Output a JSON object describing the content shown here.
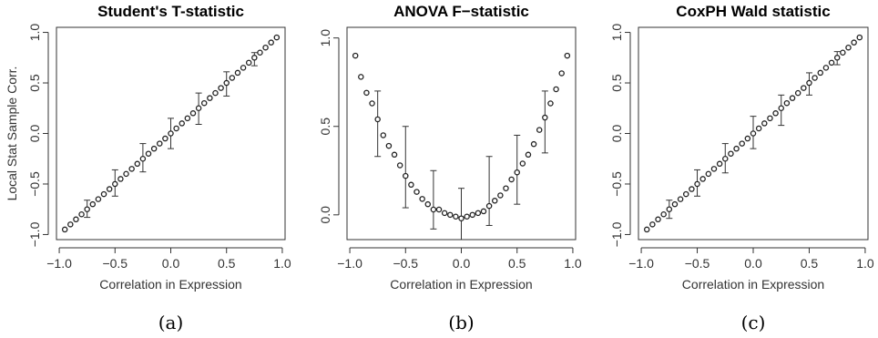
{
  "chart_data": [
    {
      "type": "scatter",
      "title": "Student's T-statistic",
      "xlabel": "Correlation in Expression",
      "ylabel": "Local Stat Sample Corr.",
      "caption": "(a)",
      "xlim": [
        -1.0,
        1.0
      ],
      "ylim": [
        -1.0,
        1.0
      ],
      "xticks": [
        -1.0,
        -0.5,
        0.0,
        0.5,
        1.0
      ],
      "xtick_labels": [
        "−1.0",
        "−0.5",
        "0.0",
        "0.5",
        "1.0"
      ],
      "yticks": [
        -1.0,
        -0.5,
        0.0,
        0.5,
        1.0
      ],
      "ytick_labels": [
        "−1.0",
        "−0.5",
        "0.0",
        "0.5",
        "1.0"
      ],
      "x": [
        -0.95,
        -0.9,
        -0.85,
        -0.8,
        -0.75,
        -0.7,
        -0.65,
        -0.6,
        -0.55,
        -0.5,
        -0.45,
        -0.4,
        -0.35,
        -0.3,
        -0.25,
        -0.2,
        -0.15,
        -0.1,
        -0.05,
        0.0,
        0.05,
        0.1,
        0.15,
        0.2,
        0.25,
        0.3,
        0.35,
        0.4,
        0.45,
        0.5,
        0.55,
        0.6,
        0.65,
        0.7,
        0.75,
        0.8,
        0.85,
        0.9,
        0.95
      ],
      "y": [
        -0.95,
        -0.9,
        -0.85,
        -0.8,
        -0.75,
        -0.7,
        -0.65,
        -0.6,
        -0.55,
        -0.5,
        -0.45,
        -0.4,
        -0.35,
        -0.3,
        -0.25,
        -0.2,
        -0.15,
        -0.1,
        -0.05,
        0.0,
        0.05,
        0.1,
        0.15,
        0.2,
        0.25,
        0.3,
        0.35,
        0.4,
        0.45,
        0.5,
        0.55,
        0.6,
        0.65,
        0.7,
        0.75,
        0.8,
        0.85,
        0.9,
        0.95
      ],
      "error_bars": [
        {
          "x": -0.75,
          "low": -0.83,
          "high": -0.66
        },
        {
          "x": -0.5,
          "low": -0.62,
          "high": -0.36
        },
        {
          "x": -0.25,
          "low": -0.38,
          "high": -0.1
        },
        {
          "x": 0.0,
          "low": -0.15,
          "high": 0.15
        },
        {
          "x": 0.25,
          "low": 0.09,
          "high": 0.4
        },
        {
          "x": 0.5,
          "low": 0.37,
          "high": 0.61
        },
        {
          "x": 0.75,
          "low": 0.67,
          "high": 0.8
        }
      ]
    },
    {
      "type": "scatter",
      "title": "ANOVA F−statistic",
      "xlabel": "Correlation in Expression",
      "ylabel": "",
      "caption": "(b)",
      "xlim": [
        -1.0,
        1.0
      ],
      "ylim": [
        -0.1,
        1.0
      ],
      "xticks": [
        -1.0,
        -0.5,
        0.0,
        0.5,
        1.0
      ],
      "xtick_labels": [
        "−1.0",
        "−0.5",
        "0.0",
        "0.5",
        "1.0"
      ],
      "yticks": [
        0.0,
        0.5,
        1.0
      ],
      "ytick_labels": [
        "0.0",
        "0.5",
        "1.0"
      ],
      "x": [
        -0.95,
        -0.9,
        -0.85,
        -0.8,
        -0.75,
        -0.7,
        -0.65,
        -0.6,
        -0.55,
        -0.5,
        -0.45,
        -0.4,
        -0.35,
        -0.3,
        -0.25,
        -0.2,
        -0.15,
        -0.1,
        -0.05,
        0.0,
        0.05,
        0.1,
        0.15,
        0.2,
        0.25,
        0.3,
        0.35,
        0.4,
        0.45,
        0.5,
        0.55,
        0.6,
        0.65,
        0.7,
        0.75,
        0.8,
        0.85,
        0.9,
        0.95
      ],
      "y": [
        0.9,
        0.78,
        0.69,
        0.63,
        0.54,
        0.45,
        0.39,
        0.34,
        0.28,
        0.22,
        0.17,
        0.13,
        0.09,
        0.06,
        0.03,
        0.03,
        0.01,
        0.0,
        -0.01,
        -0.02,
        -0.01,
        0.0,
        0.01,
        0.02,
        0.05,
        0.08,
        0.11,
        0.15,
        0.2,
        0.24,
        0.29,
        0.34,
        0.4,
        0.48,
        0.55,
        0.63,
        0.71,
        0.8,
        0.9
      ],
      "error_bars": [
        {
          "x": -0.75,
          "low": 0.33,
          "high": 0.7
        },
        {
          "x": -0.5,
          "low": 0.04,
          "high": 0.5
        },
        {
          "x": -0.25,
          "low": -0.08,
          "high": 0.25
        },
        {
          "x": 0.0,
          "low": -0.14,
          "high": 0.15
        },
        {
          "x": 0.25,
          "low": -0.06,
          "high": 0.33
        },
        {
          "x": 0.5,
          "low": 0.06,
          "high": 0.45
        },
        {
          "x": 0.75,
          "low": 0.35,
          "high": 0.7
        }
      ]
    },
    {
      "type": "scatter",
      "title": "CoxPH Wald statistic",
      "xlabel": "Correlation in Expression",
      "ylabel": "",
      "caption": "(c)",
      "xlim": [
        -1.0,
        1.0
      ],
      "ylim": [
        -1.0,
        1.0
      ],
      "xticks": [
        -1.0,
        -0.5,
        0.0,
        0.5,
        1.0
      ],
      "xtick_labels": [
        "−1.0",
        "−0.5",
        "0.0",
        "0.5",
        "1.0"
      ],
      "yticks": [
        -1.0,
        -0.5,
        0.0,
        0.5,
        1.0
      ],
      "ytick_labels": [
        "−1.0",
        "−0.5",
        "0.0",
        "0.5",
        "1.0"
      ],
      "x": [
        -0.95,
        -0.9,
        -0.85,
        -0.8,
        -0.75,
        -0.7,
        -0.65,
        -0.6,
        -0.55,
        -0.5,
        -0.45,
        -0.4,
        -0.35,
        -0.3,
        -0.25,
        -0.2,
        -0.15,
        -0.1,
        -0.05,
        0.0,
        0.05,
        0.1,
        0.15,
        0.2,
        0.25,
        0.3,
        0.35,
        0.4,
        0.45,
        0.5,
        0.55,
        0.6,
        0.65,
        0.7,
        0.75,
        0.8,
        0.85,
        0.9,
        0.95
      ],
      "y": [
        -0.95,
        -0.9,
        -0.85,
        -0.8,
        -0.75,
        -0.7,
        -0.65,
        -0.6,
        -0.55,
        -0.5,
        -0.45,
        -0.4,
        -0.35,
        -0.3,
        -0.25,
        -0.2,
        -0.15,
        -0.1,
        -0.05,
        0.0,
        0.05,
        0.1,
        0.15,
        0.2,
        0.25,
        0.3,
        0.35,
        0.4,
        0.45,
        0.5,
        0.55,
        0.6,
        0.65,
        0.7,
        0.75,
        0.8,
        0.85,
        0.9,
        0.95
      ],
      "error_bars": [
        {
          "x": -0.75,
          "low": -0.84,
          "high": -0.66
        },
        {
          "x": -0.5,
          "low": -0.62,
          "high": -0.36
        },
        {
          "x": -0.25,
          "low": -0.39,
          "high": -0.1
        },
        {
          "x": 0.0,
          "low": -0.15,
          "high": 0.17
        },
        {
          "x": 0.25,
          "low": 0.08,
          "high": 0.38
        },
        {
          "x": 0.5,
          "low": 0.38,
          "high": 0.6
        },
        {
          "x": 0.75,
          "low": 0.68,
          "high": 0.81
        }
      ]
    }
  ]
}
